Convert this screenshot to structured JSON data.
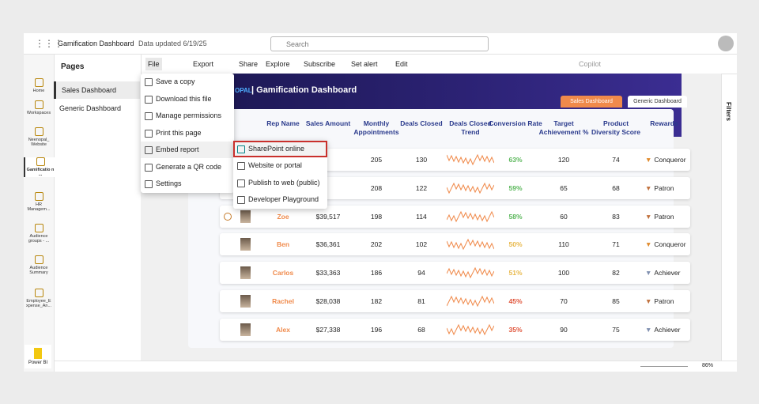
{
  "header": {
    "title": "Gamification Dashboard",
    "updated": "Data updated 6/19/25",
    "search": "Search"
  },
  "nav": [
    "Home",
    "Workspaces",
    "Neenopal_ Website",
    "Gamificatio n ...",
    "HR Managem...",
    "Audience groups - ...",
    "Audience Summary",
    "Employee_E xpense_An..."
  ],
  "nav_footer": "Power BI",
  "pages": {
    "title": "Pages",
    "items": [
      "Sales Dashboard",
      "Generic Dashboard"
    ]
  },
  "toolbar": [
    "File",
    "Export",
    "Share",
    "Explore",
    "Subscribe",
    "Set alert",
    "Edit"
  ],
  "copilot": "Copilot",
  "file_menu": [
    "Save a copy",
    "Download this file",
    "Manage permissions",
    "Print this page",
    "Embed report",
    "Generate a QR code",
    "Settings"
  ],
  "embed_menu": [
    "SharePoint online",
    "Website or portal",
    "Publish to web (public)",
    "Developer Playground"
  ],
  "report": {
    "brand": "OPAL",
    "title": "| Gamification Dashboard",
    "tabs": [
      "Sales Dashboard",
      "Generic Dashboard"
    ],
    "columns": [
      "Rep Name",
      "Sales Amount",
      "Monthly Appointments",
      "Deals Closed",
      "Deals Closed Trend",
      "Conversion Rate",
      "Target Achievement %",
      "Product Diversity Score",
      "Rewards"
    ],
    "rows": [
      [
        null,
        null,
        "205",
        "130",
        "63%",
        "120",
        "74",
        "Conqueror"
      ],
      [
        null,
        null,
        "208",
        "122",
        "59%",
        "65",
        "68",
        "Patron"
      ],
      [
        "Zoe",
        "$39,517",
        "198",
        "114",
        "58%",
        "60",
        "83",
        "Patron"
      ],
      [
        "Ben",
        "$36,361",
        "202",
        "102",
        "50%",
        "110",
        "71",
        "Conqueror"
      ],
      [
        "Carlos",
        "$33,363",
        "186",
        "94",
        "51%",
        "100",
        "82",
        "Achiever"
      ],
      [
        "Rachel",
        "$28,038",
        "182",
        "81",
        "45%",
        "70",
        "85",
        "Patron"
      ],
      [
        "Alex",
        "$27,338",
        "196",
        "68",
        "35%",
        "90",
        "75",
        "Achiever"
      ]
    ]
  },
  "filters": "Filters",
  "zoom": "86%"
}
